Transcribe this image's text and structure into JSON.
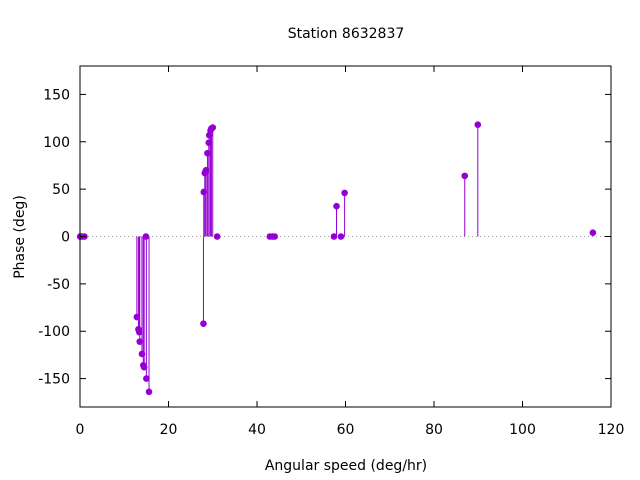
{
  "chart_data": {
    "type": "stem",
    "title": "Station 8632837",
    "xlabel": "Angular speed (deg/hr)",
    "ylabel": "Phase (deg)",
    "xlim": [
      0,
      120
    ],
    "ylim": [
      -180,
      180
    ],
    "xticks": [
      0,
      20,
      40,
      60,
      80,
      100,
      120
    ],
    "yticks": [
      -150,
      -100,
      -50,
      0,
      50,
      100,
      150
    ],
    "zero_line": "dotted",
    "color": "#9400d3",
    "series": [
      {
        "points": [
          [
            0.04,
            0
          ],
          [
            0.08,
            0
          ],
          [
            0.5,
            0
          ],
          [
            1.0,
            0
          ],
          [
            12.85,
            -85
          ],
          [
            13.2,
            -98
          ],
          [
            13.4,
            -101
          ],
          [
            13.5,
            -111
          ],
          [
            14.0,
            -124
          ],
          [
            14.3,
            -136
          ],
          [
            14.5,
            -138
          ],
          [
            14.9,
            0
          ],
          [
            15.0,
            -150
          ],
          [
            15.6,
            -164
          ],
          [
            27.9,
            -92
          ],
          [
            27.97,
            47
          ],
          [
            28.2,
            67
          ],
          [
            28.4,
            69
          ],
          [
            28.5,
            70
          ],
          [
            28.8,
            88
          ],
          [
            29.1,
            99
          ],
          [
            29.2,
            107
          ],
          [
            29.5,
            112
          ],
          [
            29.7,
            114
          ],
          [
            30.0,
            115
          ],
          [
            31.0,
            0
          ],
          [
            42.9,
            0
          ],
          [
            43.5,
            0
          ],
          [
            44.0,
            0
          ],
          [
            57.4,
            0
          ],
          [
            57.97,
            32
          ],
          [
            58.98,
            0
          ],
          [
            59.8,
            46
          ],
          [
            86.95,
            64
          ],
          [
            89.9,
            118
          ],
          [
            115.9,
            4
          ]
        ]
      }
    ]
  }
}
